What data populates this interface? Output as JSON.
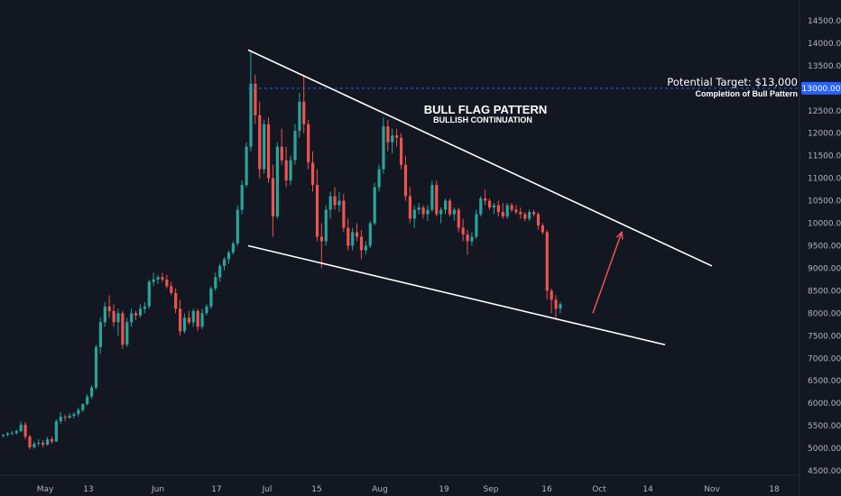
{
  "chart_data": {
    "type": "candlestick",
    "title": "BULL FLAG PATTERN",
    "subtitle": "BULLISH CONTINUATION",
    "colors": {
      "background": "#131722",
      "up": "#26a69a",
      "down": "#ef5350",
      "trendline": "#ffffff",
      "target_line": "#2962ff",
      "arrow": "#ef5350",
      "axis_text": "#b2b5be",
      "badge": "#2962ff"
    },
    "x_tick_labels": [
      "May",
      "13",
      "Jun",
      "17",
      "Jul",
      "15",
      "Aug",
      "19",
      "Sep",
      "16",
      "Oct",
      "14",
      "Nov",
      "18"
    ],
    "y_tick_labels": [
      "4500.00",
      "5000.00",
      "5500.00",
      "6000.00",
      "6500.00",
      "7000.00",
      "7500.00",
      "8000.00",
      "8500.00",
      "9000.00",
      "9500.00",
      "10000.00",
      "10500.00",
      "11000.00",
      "11500.00",
      "12000.00",
      "12500.00",
      "13000.00",
      "13500.00",
      "14000.00",
      "14500.00"
    ],
    "ylim": [
      4400,
      14800
    ],
    "xlim_days": [
      -6,
      175
    ],
    "target": {
      "value": 13000,
      "badge_label": "13000.00",
      "label": "Potential Target: $13,000",
      "note": "Completion of Bull Pattern"
    },
    "trendlines": [
      {
        "name": "upper",
        "points": [
          [
            51,
            13850
          ],
          [
            168,
            9050
          ]
        ]
      },
      {
        "name": "lower",
        "points": [
          [
            51,
            9500
          ],
          [
            141,
            7300
          ]
        ]
      }
    ],
    "arrow": {
      "from": [
        126,
        8000
      ],
      "to": [
        134,
        9800
      ]
    },
    "candles": [
      [
        5280,
        5310,
        5240,
        5300
      ],
      [
        5300,
        5360,
        5260,
        5330
      ],
      [
        5330,
        5380,
        5290,
        5340
      ],
      [
        5340,
        5420,
        5300,
        5380
      ],
      [
        5380,
        5600,
        5350,
        5520
      ],
      [
        5520,
        5580,
        5200,
        5260
      ],
      [
        5260,
        5300,
        4980,
        5020
      ],
      [
        5020,
        5150,
        4990,
        5100
      ],
      [
        5100,
        5200,
        5050,
        5120
      ],
      [
        5120,
        5180,
        5020,
        5080
      ],
      [
        5080,
        5250,
        5060,
        5200
      ],
      [
        5200,
        5260,
        5100,
        5150
      ],
      [
        5150,
        5650,
        5140,
        5600
      ],
      [
        5600,
        5800,
        5550,
        5700
      ],
      [
        5700,
        5750,
        5600,
        5680
      ],
      [
        5680,
        5780,
        5650,
        5720
      ],
      [
        5720,
        5800,
        5660,
        5760
      ],
      [
        5760,
        5900,
        5700,
        5850
      ],
      [
        5850,
        6000,
        5800,
        5980
      ],
      [
        5980,
        6200,
        5950,
        6150
      ],
      [
        6150,
        6400,
        6100,
        6350
      ],
      [
        6350,
        7300,
        6300,
        7250
      ],
      [
        7250,
        7900,
        7100,
        7800
      ],
      [
        7800,
        8250,
        7700,
        8150
      ],
      [
        8150,
        8400,
        7900,
        8050
      ],
      [
        8050,
        8200,
        7700,
        7800
      ],
      [
        7800,
        8100,
        7500,
        8000
      ],
      [
        8000,
        8050,
        7200,
        7300
      ],
      [
        7300,
        7900,
        7250,
        7800
      ],
      [
        7800,
        8100,
        7700,
        8000
      ],
      [
        8000,
        8050,
        7850,
        7950
      ],
      [
        7950,
        8200,
        7900,
        8100
      ],
      [
        8100,
        8250,
        8000,
        8150
      ],
      [
        8150,
        8750,
        8100,
        8700
      ],
      [
        8700,
        8900,
        8600,
        8750
      ],
      [
        8750,
        8850,
        8650,
        8800
      ],
      [
        8800,
        8900,
        8700,
        8750
      ],
      [
        8750,
        8850,
        8550,
        8600
      ],
      [
        8600,
        8700,
        8400,
        8450
      ],
      [
        8450,
        8550,
        8000,
        8100
      ],
      [
        8100,
        8300,
        7500,
        7600
      ],
      [
        7600,
        8000,
        7550,
        7900
      ],
      [
        7900,
        8050,
        7750,
        7800
      ],
      [
        7800,
        8100,
        7700,
        8050
      ],
      [
        8050,
        8100,
        7600,
        7700
      ],
      [
        7700,
        8100,
        7650,
        8000
      ],
      [
        8000,
        8200,
        7950,
        8150
      ],
      [
        8150,
        8600,
        8100,
        8550
      ],
      [
        8550,
        8900,
        8500,
        8800
      ],
      [
        8800,
        9100,
        8700,
        9050
      ],
      [
        9050,
        9250,
        8950,
        9200
      ],
      [
        9200,
        9400,
        9100,
        9350
      ],
      [
        9350,
        9600,
        9300,
        9550
      ],
      [
        9550,
        10400,
        9500,
        10300
      ],
      [
        10300,
        10950,
        10200,
        10850
      ],
      [
        10850,
        11800,
        10800,
        11700
      ],
      [
        11700,
        13850,
        11600,
        13100
      ],
      [
        13100,
        13300,
        12200,
        12400
      ],
      [
        12400,
        12700,
        11000,
        11200
      ],
      [
        11200,
        12300,
        11100,
        12200
      ],
      [
        12200,
        12350,
        10900,
        11000
      ],
      [
        11000,
        11300,
        9700,
        10150
      ],
      [
        10150,
        11800,
        10100,
        11700
      ],
      [
        11700,
        12100,
        11300,
        11400
      ],
      [
        11400,
        11700,
        10800,
        10950
      ],
      [
        10950,
        11500,
        10850,
        11400
      ],
      [
        11400,
        12200,
        11300,
        12050
      ],
      [
        12050,
        12900,
        11900,
        12700
      ],
      [
        12700,
        13300,
        12000,
        12200
      ],
      [
        12200,
        12300,
        11200,
        11350
      ],
      [
        11350,
        11600,
        10700,
        10850
      ],
      [
        10850,
        11200,
        9600,
        9700
      ],
      [
        9700,
        10000,
        9000,
        9600
      ],
      [
        9600,
        10400,
        9500,
        10300
      ],
      [
        10300,
        10700,
        10100,
        10600
      ],
      [
        10600,
        10800,
        10300,
        10400
      ],
      [
        10400,
        10700,
        10250,
        10500
      ],
      [
        10500,
        10650,
        9800,
        9900
      ],
      [
        9900,
        10100,
        9400,
        9500
      ],
      [
        9500,
        9900,
        9400,
        9800
      ],
      [
        9800,
        10000,
        9600,
        9700
      ],
      [
        9700,
        9850,
        9200,
        9400
      ],
      [
        9400,
        9600,
        9300,
        9500
      ],
      [
        9500,
        10050,
        9450,
        10000
      ],
      [
        10000,
        10900,
        9950,
        10800
      ],
      [
        10800,
        11300,
        10700,
        11200
      ],
      [
        11200,
        12350,
        11100,
        12150
      ],
      [
        12150,
        12300,
        11600,
        11800
      ],
      [
        11800,
        12100,
        11550,
        11950
      ],
      [
        11950,
        12100,
        11700,
        11900
      ],
      [
        11900,
        12000,
        11200,
        11300
      ],
      [
        11300,
        11500,
        10500,
        10600
      ],
      [
        10600,
        10800,
        10000,
        10100
      ],
      [
        10100,
        10400,
        9900,
        10300
      ],
      [
        10300,
        10450,
        10200,
        10350
      ],
      [
        10350,
        10400,
        10100,
        10200
      ],
      [
        10200,
        10400,
        10050,
        10300
      ],
      [
        10300,
        10950,
        10250,
        10850
      ],
      [
        10850,
        10950,
        10150,
        10200
      ],
      [
        10200,
        10350,
        10000,
        10300
      ],
      [
        10300,
        10550,
        10200,
        10500
      ],
      [
        10500,
        10550,
        10150,
        10200
      ],
      [
        10200,
        10350,
        10050,
        10300
      ],
      [
        10300,
        10350,
        9800,
        9900
      ],
      [
        9900,
        10100,
        9600,
        9750
      ],
      [
        9750,
        9850,
        9300,
        9600
      ],
      [
        9600,
        9800,
        9500,
        9700
      ],
      [
        9700,
        10300,
        9650,
        10200
      ],
      [
        10200,
        10600,
        10150,
        10550
      ],
      [
        10550,
        10750,
        10400,
        10500
      ],
      [
        10500,
        10550,
        10300,
        10350
      ],
      [
        10350,
        10450,
        10200,
        10400
      ],
      [
        10400,
        10500,
        10150,
        10250
      ],
      [
        10250,
        10450,
        10100,
        10150
      ],
      [
        10150,
        10450,
        10100,
        10400
      ],
      [
        10400,
        10450,
        10250,
        10300
      ],
      [
        10300,
        10400,
        10200,
        10250
      ],
      [
        10250,
        10350,
        10100,
        10200
      ],
      [
        10200,
        10250,
        10050,
        10100
      ],
      [
        10100,
        10300,
        10050,
        10250
      ],
      [
        10250,
        10300,
        10150,
        10200
      ],
      [
        10200,
        10250,
        9850,
        9950
      ],
      [
        9950,
        10000,
        9750,
        9800
      ],
      [
        9800,
        9850,
        8300,
        8500
      ],
      [
        8500,
        8550,
        8000,
        8300
      ],
      [
        8300,
        8400,
        7850,
        8100
      ],
      [
        8100,
        8250,
        8000,
        8200
      ]
    ]
  }
}
